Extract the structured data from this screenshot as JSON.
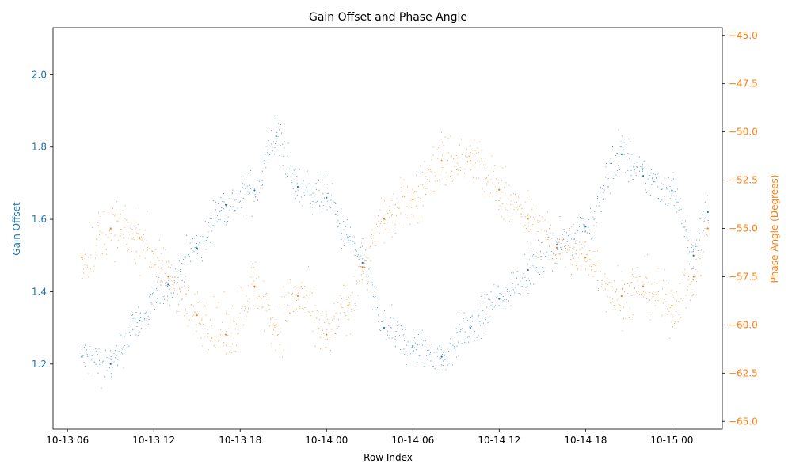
{
  "chart_data": {
    "type": "scatter",
    "title": "Gain Offset and Phase Angle",
    "xlabel": "Row Index",
    "ylabel_left": "Gain Offset",
    "ylabel_right": "Phase Angle (Degrees)",
    "x_ticks": [
      "10-13 06",
      "10-13 12",
      "10-13 18",
      "10-14 00",
      "10-14 06",
      "10-14 12",
      "10-14 18",
      "10-15 00"
    ],
    "x_range": [
      "2023-10-13 05:00",
      "2023-10-15 03:30"
    ],
    "ylim_left": [
      1.02,
      2.13
    ],
    "yticks_left": [
      "1.2",
      "1.4",
      "1.6",
      "1.8",
      "2.0"
    ],
    "ylim_right": [
      -65.4,
      -44.6
    ],
    "yticks_right": [
      "−45.0",
      "−47.5",
      "−50.0",
      "−52.5",
      "−55.0",
      "−57.5",
      "−60.0",
      "−62.5",
      "−65.0"
    ],
    "grid": false,
    "colors": {
      "left": "#1f77b4",
      "right": "#ff7f0e"
    },
    "series": [
      {
        "name": "Gain Offset",
        "axis": "left",
        "color": "#1f77b4",
        "x": [
          "10-13 07:00",
          "10-13 09:00",
          "10-13 11:00",
          "10-13 13:00",
          "10-13 15:00",
          "10-13 17:00",
          "10-13 19:00",
          "10-13 20:30",
          "10-13 22:00",
          "10-14 00:00",
          "10-14 01:30",
          "10-14 02:30",
          "10-14 04:00",
          "10-14 06:00",
          "10-14 08:00",
          "10-14 10:00",
          "10-14 12:00",
          "10-14 14:00",
          "10-14 16:00",
          "10-14 18:00",
          "10-14 20:30",
          "10-14 22:00",
          "10-15 00:00",
          "10-15 01:30",
          "10-15 02:30"
        ],
        "y": [
          1.22,
          1.2,
          1.32,
          1.42,
          1.52,
          1.64,
          1.68,
          1.83,
          1.69,
          1.66,
          1.55,
          1.48,
          1.3,
          1.25,
          1.22,
          1.3,
          1.38,
          1.46,
          1.53,
          1.58,
          1.78,
          1.72,
          1.68,
          1.5,
          1.62
        ],
        "spread": [
          0.05,
          0.05,
          0.05,
          0.05,
          0.05,
          0.05,
          0.05,
          0.06,
          0.05,
          0.05,
          0.05,
          0.05,
          0.05,
          0.05,
          0.05,
          0.05,
          0.05,
          0.05,
          0.05,
          0.05,
          0.06,
          0.05,
          0.05,
          0.05,
          0.05
        ]
      },
      {
        "name": "Phase Angle",
        "axis": "right",
        "color": "#ff7f0e",
        "x": [
          "10-13 07:00",
          "10-13 09:00",
          "10-13 11:00",
          "10-13 13:00",
          "10-13 15:00",
          "10-13 17:00",
          "10-13 19:00",
          "10-13 20:30",
          "10-13 22:00",
          "10-14 00:00",
          "10-14 01:30",
          "10-14 02:30",
          "10-14 04:00",
          "10-14 06:00",
          "10-14 08:00",
          "10-14 10:00",
          "10-14 12:00",
          "10-14 14:00",
          "10-14 16:00",
          "10-14 18:00",
          "10-14 20:30",
          "10-14 22:00",
          "10-15 00:00",
          "10-15 01:30",
          "10-15 02:30"
        ],
        "y": [
          -56.5,
          -55.0,
          -55.5,
          -57.5,
          -59.5,
          -60.5,
          -58.0,
          -60.0,
          -58.5,
          -60.5,
          -59.0,
          -57.0,
          -54.5,
          -53.5,
          -51.5,
          -51.5,
          -53.0,
          -54.5,
          -56.0,
          -56.5,
          -58.5,
          -58.0,
          -59.0,
          -57.5,
          -55.0
        ],
        "spread": [
          1.3,
          1.3,
          1.3,
          1.2,
          1.2,
          1.4,
          1.3,
          1.5,
          1.3,
          1.3,
          1.2,
          1.1,
          1.2,
          1.3,
          1.4,
          1.4,
          1.3,
          1.2,
          1.2,
          1.2,
          1.4,
          1.3,
          1.3,
          1.2,
          1.2
        ]
      }
    ]
  }
}
